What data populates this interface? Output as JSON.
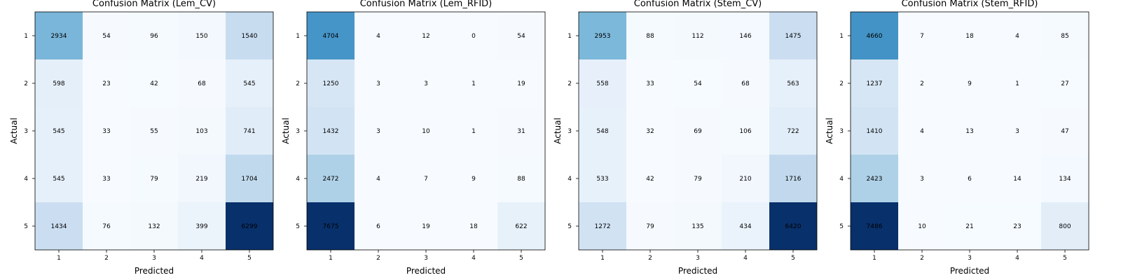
{
  "chart_data": [
    {
      "type": "heatmap",
      "title": "Confusion Matrix (Lem_CV)",
      "xlabel": "Predicted",
      "ylabel": "Actual",
      "x_categories": [
        "1",
        "2",
        "3",
        "4",
        "5"
      ],
      "y_categories": [
        "1",
        "2",
        "3",
        "4",
        "5"
      ],
      "colormap": "Blues",
      "values": [
        [
          2934,
          54,
          96,
          150,
          1540
        ],
        [
          598,
          23,
          42,
          68,
          545
        ],
        [
          545,
          33,
          55,
          103,
          741
        ],
        [
          545,
          33,
          79,
          219,
          1704
        ],
        [
          1434,
          76,
          132,
          399,
          6299
        ]
      ]
    },
    {
      "type": "heatmap",
      "title": "Confusion Matrix (Lem_RFID)",
      "xlabel": "Predicted",
      "ylabel": "Actual",
      "x_categories": [
        "1",
        "2",
        "3",
        "4",
        "5"
      ],
      "y_categories": [
        "1",
        "2",
        "3",
        "4",
        "5"
      ],
      "colormap": "Blues",
      "values": [
        [
          4704,
          4,
          12,
          0,
          54
        ],
        [
          1250,
          3,
          3,
          1,
          19
        ],
        [
          1432,
          3,
          10,
          1,
          31
        ],
        [
          2472,
          4,
          7,
          9,
          88
        ],
        [
          7675,
          6,
          19,
          18,
          622
        ]
      ]
    },
    {
      "type": "heatmap",
      "title": "Confusion Matrix (Stem_CV)",
      "xlabel": "Predicted",
      "ylabel": "Actual",
      "x_categories": [
        "1",
        "2",
        "3",
        "4",
        "5"
      ],
      "y_categories": [
        "1",
        "2",
        "3",
        "4",
        "5"
      ],
      "colormap": "Blues",
      "values": [
        [
          2953,
          88,
          112,
          146,
          1475
        ],
        [
          558,
          33,
          54,
          68,
          563
        ],
        [
          548,
          32,
          69,
          106,
          722
        ],
        [
          533,
          42,
          79,
          210,
          1716
        ],
        [
          1272,
          79,
          135,
          434,
          6420
        ]
      ]
    },
    {
      "type": "heatmap",
      "title": "Confusion Matrix (Stem_RFID)",
      "xlabel": "Predicted",
      "ylabel": "Actual",
      "x_categories": [
        "1",
        "2",
        "3",
        "4",
        "5"
      ],
      "y_categories": [
        "1",
        "2",
        "3",
        "4",
        "5"
      ],
      "colormap": "Blues",
      "values": [
        [
          4660,
          7,
          18,
          4,
          85
        ],
        [
          1237,
          2,
          9,
          1,
          27
        ],
        [
          1410,
          4,
          13,
          3,
          47
        ],
        [
          2423,
          3,
          6,
          14,
          134
        ],
        [
          7486,
          10,
          21,
          23,
          800
        ]
      ]
    }
  ]
}
